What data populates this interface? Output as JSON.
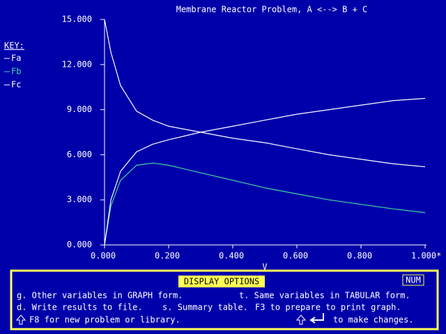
{
  "chart_data": {
    "type": "line",
    "title": "Membrane Reactor Problem, A <--> B + C",
    "x_label": "V",
    "key_title": "KEY:",
    "x": [
      0,
      0.02,
      0.05,
      0.1,
      0.15,
      0.2,
      0.3,
      0.4,
      0.5,
      0.6,
      0.7,
      0.8,
      0.9,
      1.0
    ],
    "series": [
      {
        "name": "Fa",
        "color": "#ffffff",
        "values": [
          15,
          12.8,
          10.6,
          8.9,
          8.3,
          7.9,
          7.5,
          7.1,
          6.8,
          6.4,
          6.0,
          5.7,
          5.4,
          5.2
        ]
      },
      {
        "name": "Fb",
        "color": "#40d8a0",
        "values": [
          0,
          2.6,
          4.3,
          5.3,
          5.45,
          5.3,
          4.8,
          4.3,
          3.8,
          3.4,
          3.0,
          2.7,
          2.4,
          2.15
        ]
      },
      {
        "name": "Fc",
        "color": "#ffffff",
        "values": [
          0,
          3.0,
          4.9,
          6.2,
          6.7,
          7.0,
          7.5,
          7.9,
          8.3,
          8.7,
          9.0,
          9.3,
          9.6,
          9.75
        ]
      }
    ],
    "xlim": [
      0,
      1
    ],
    "ylim": [
      0,
      15
    ],
    "xticks": [
      {
        "value": 0,
        "label": "0.000"
      },
      {
        "value": 0.2,
        "label": "0.200"
      },
      {
        "value": 0.4,
        "label": "0.400"
      },
      {
        "value": 0.6,
        "label": "0.600"
      },
      {
        "value": 0.8,
        "label": "0.800"
      },
      {
        "value": 1,
        "label": "1.000*"
      }
    ],
    "yticks": [
      {
        "value": 0,
        "label": "0.000"
      },
      {
        "value": 3,
        "label": "3.000"
      },
      {
        "value": 6,
        "label": "6.000"
      },
      {
        "value": 9,
        "label": "9.000"
      },
      {
        "value": 12,
        "label": "12.000"
      },
      {
        "value": 15,
        "label": "15.000"
      }
    ]
  },
  "options_panel": {
    "title": "DISPLAY OPTIONS",
    "status": "NUM",
    "lines": [
      "g. Other variables in GRAPH form.",
      "t. Same variables in TABULAR form.",
      "d. Write results to file.",
      "s. Summary table.",
      "F3 to prepare to print graph.",
      "F8 for new problem or library.",
      "to make changes."
    ]
  }
}
